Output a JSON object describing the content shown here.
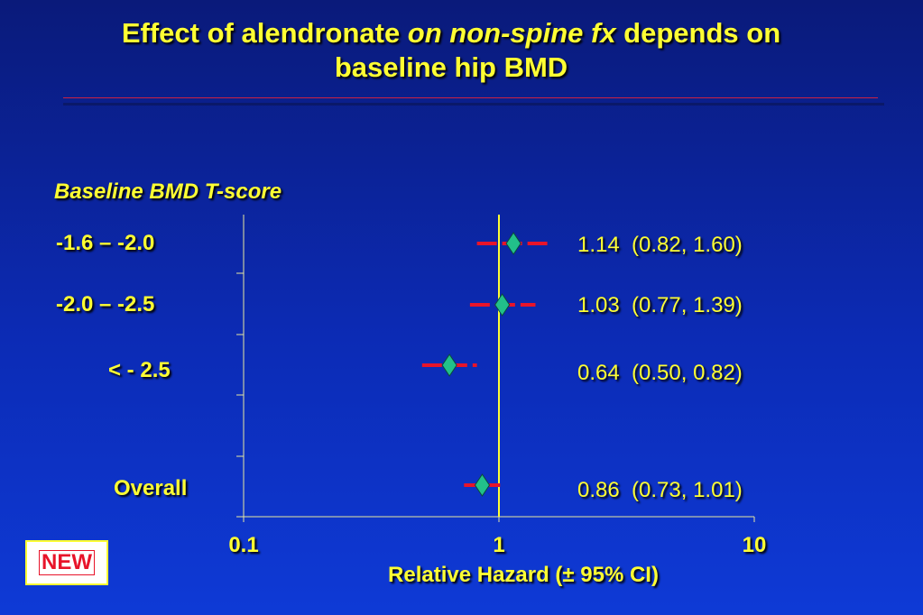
{
  "title": {
    "part1": "Effect of alendronate ",
    "part2_italic": "on non-spine fx",
    "part3": " depends on",
    "line2": "baseline hip BMD"
  },
  "badge": "NEW",
  "colors": {
    "text": "#ffff33",
    "ci_line": "#e8142a",
    "marker": "#22c08a",
    "reference_line": "#ffff33",
    "axis": "#e8e8a0"
  },
  "chart_data": {
    "type": "forest",
    "ylabel": "Baseline BMD T-score",
    "xlabel": "Relative Hazard (± 95% CI)",
    "xscale": "log",
    "xlim": [
      0.1,
      10
    ],
    "xticks": [
      "0.1",
      "1",
      "10"
    ],
    "xtick_values": [
      0.1,
      1,
      10
    ],
    "reference_value": 1,
    "rows": [
      {
        "label": "-1.6 – -2.0",
        "estimate": 1.14,
        "lower": 0.82,
        "upper": 1.6,
        "ci_text": "1.14  (0.82, 1.60)"
      },
      {
        "label": "-2.0 – -2.5",
        "estimate": 1.03,
        "lower": 0.77,
        "upper": 1.39,
        "ci_text": "1.03  (0.77, 1.39)"
      },
      {
        "label": "< - 2.5",
        "estimate": 0.64,
        "lower": 0.5,
        "upper": 0.82,
        "ci_text": "0.64  (0.50, 0.82)"
      },
      {
        "label": "Overall",
        "estimate": 0.86,
        "lower": 0.73,
        "upper": 1.01,
        "ci_text": "0.86  (0.73, 1.01)"
      }
    ]
  }
}
